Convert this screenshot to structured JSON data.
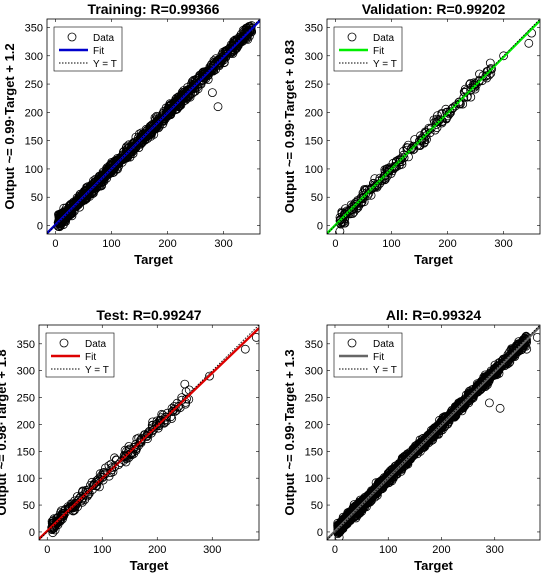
{
  "chart_data": [
    {
      "type": "scatter",
      "title": "Training: R=0.99366",
      "xlabel": "Target",
      "ylabel": "Output ~= 0.99·Target + 1.2",
      "xlim": [
        -15,
        365
      ],
      "ylim": [
        -15,
        365
      ],
      "xticks": [
        0,
        100,
        200,
        300
      ],
      "yticks": [
        0,
        50,
        100,
        150,
        200,
        250,
        300,
        350
      ],
      "fit": {
        "slope": 0.99,
        "intercept": 1.2,
        "color": "#0000cc"
      },
      "legend": {
        "placement": "top-left",
        "entries": [
          "Data",
          "Fit",
          "Y = T"
        ]
      },
      "scatter_profile": {
        "n": 1100,
        "x_range": [
          5,
          350
        ],
        "noise": 7,
        "seed": 11
      },
      "series": [
        {
          "name": "Data",
          "points": [
            [
              5,
              5
            ],
            [
              280,
              235
            ],
            [
              290,
              210
            ],
            [
              335,
              345
            ],
            [
              260,
              250
            ]
          ]
        }
      ]
    },
    {
      "type": "scatter",
      "title": "Validation: R=0.99202",
      "xlabel": "Target",
      "ylabel": "Output ~= 0.99·Target + 0.83",
      "xlim": [
        -15,
        365
      ],
      "ylim": [
        -15,
        365
      ],
      "xticks": [
        0,
        100,
        200,
        300
      ],
      "yticks": [
        0,
        50,
        100,
        150,
        200,
        250,
        300,
        350
      ],
      "fit": {
        "slope": 0.99,
        "intercept": 0.83,
        "color": "#00ee00"
      },
      "legend": {
        "placement": "top-left",
        "entries": [
          "Data",
          "Fit",
          "Y = T"
        ]
      },
      "scatter_profile": {
        "n": 240,
        "x_range": [
          8,
          280
        ],
        "noise": 8,
        "seed": 23
      },
      "series": [
        {
          "name": "Data",
          "points": [
            [
              8,
              -10
            ],
            [
              300,
              300
            ],
            [
              350,
              340
            ],
            [
              345,
              322
            ]
          ]
        }
      ]
    },
    {
      "type": "scatter",
      "title": "Test: R=0.99247",
      "xlabel": "Target",
      "ylabel": "Output ~= 0.98·Target + 1.8",
      "xlim": [
        -15,
        385
      ],
      "ylim": [
        -15,
        385
      ],
      "xticks": [
        0,
        100,
        200,
        300
      ],
      "yticks": [
        0,
        50,
        100,
        150,
        200,
        250,
        300,
        350
      ],
      "fit": {
        "slope": 0.98,
        "intercept": 1.8,
        "color": "#dd0000"
      },
      "legend": {
        "placement": "top-left",
        "entries": [
          "Data",
          "Fit",
          "Y = T"
        ]
      },
      "scatter_profile": {
        "n": 240,
        "x_range": [
          8,
          260
        ],
        "noise": 8,
        "seed": 37
      },
      "series": [
        {
          "name": "Data",
          "points": [
            [
              380,
              362
            ],
            [
              360,
              340
            ],
            [
              295,
              290
            ],
            [
              250,
              275
            ]
          ]
        }
      ]
    },
    {
      "type": "scatter",
      "title": "All: R=0.99324",
      "xlabel": "Target",
      "ylabel": "Output ~= 0.99·Target + 1.3",
      "xlim": [
        -15,
        385
      ],
      "ylim": [
        -15,
        385
      ],
      "xticks": [
        0,
        100,
        200,
        300
      ],
      "yticks": [
        0,
        50,
        100,
        150,
        200,
        250,
        300,
        350
      ],
      "fit": {
        "slope": 0.99,
        "intercept": 1.3,
        "color": "#666666"
      },
      "legend": {
        "placement": "top-left",
        "entries": [
          "Data",
          "Fit",
          "Y = T"
        ]
      },
      "scatter_profile": {
        "n": 1400,
        "x_range": [
          5,
          360
        ],
        "noise": 7,
        "seed": 53
      },
      "series": [
        {
          "name": "Data",
          "points": [
            [
              380,
              362
            ],
            [
              290,
              240
            ],
            [
              310,
              230
            ],
            [
              360,
              340
            ],
            [
              8,
              -10
            ]
          ]
        }
      ]
    }
  ]
}
